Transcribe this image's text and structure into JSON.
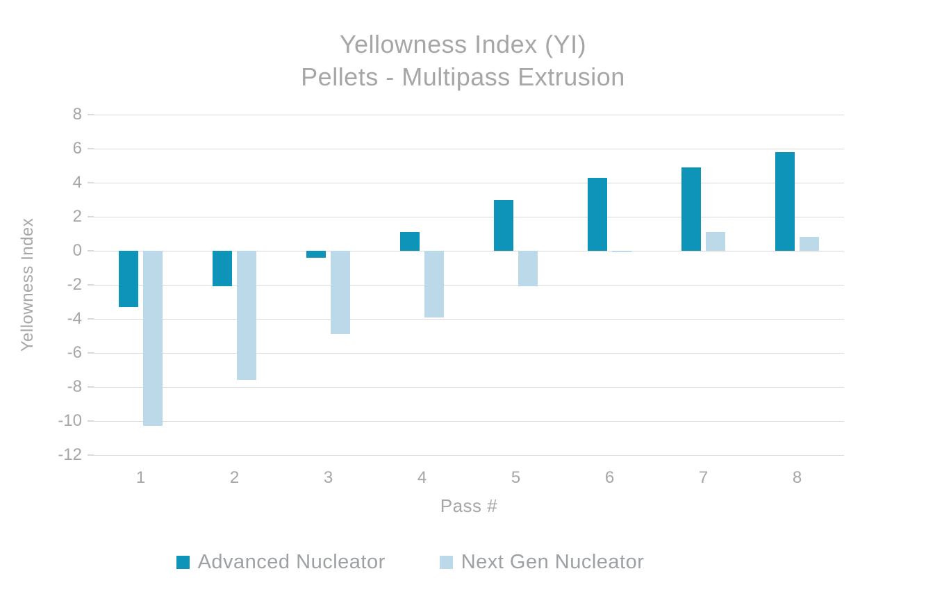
{
  "chart_data": {
    "type": "bar",
    "title_line1": "Yellowness Index (YI)",
    "title_line2": "Pellets - Multipass Extrusion",
    "xlabel": "Pass #",
    "ylabel": "Yellowness Index",
    "categories": [
      "1",
      "2",
      "3",
      "4",
      "5",
      "6",
      "7",
      "8"
    ],
    "series": [
      {
        "name": "Advanced Nucleator",
        "color": "#0e94b9",
        "values": [
          -3.3,
          -2.1,
          -0.4,
          1.1,
          3.0,
          4.3,
          4.9,
          5.8
        ]
      },
      {
        "name": "Next Gen Nucleator",
        "color": "#bcd9ea",
        "values": [
          -10.3,
          -7.6,
          -4.9,
          -3.9,
          -2.1,
          -0.1,
          1.1,
          0.8
        ]
      }
    ],
    "ylim": [
      -12,
      8
    ],
    "yticks": [
      8,
      6,
      4,
      2,
      0,
      -2,
      -4,
      -6,
      -8,
      -10,
      -12
    ],
    "grid": true,
    "legend_position": "bottom",
    "text_color": "#a6a6a6",
    "gridline_color": "#d9d9d9"
  }
}
